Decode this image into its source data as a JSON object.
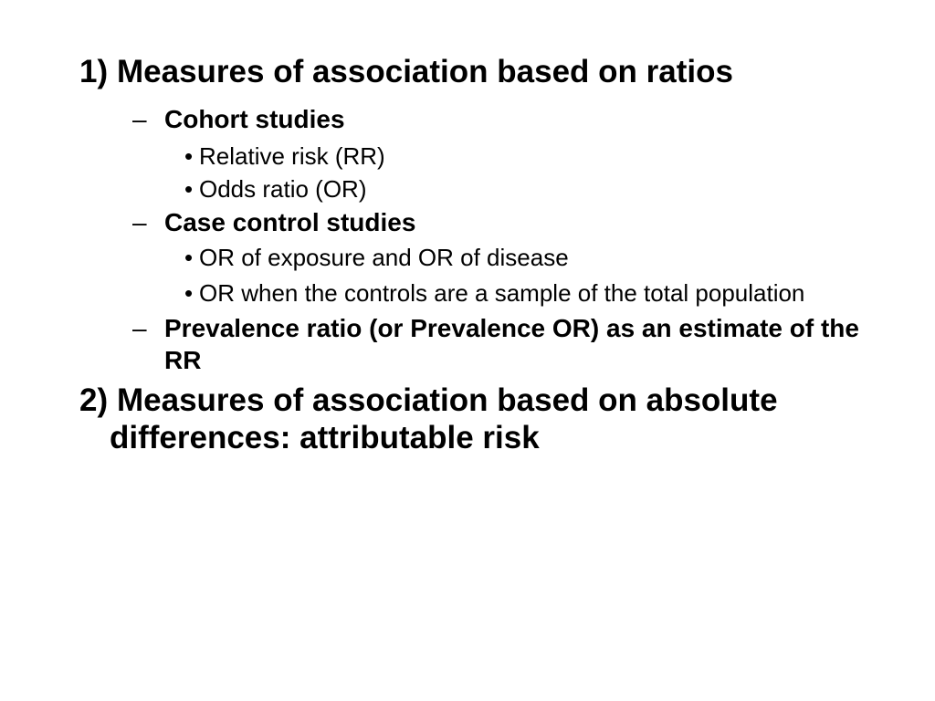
{
  "slide": {
    "background_color": "#ffffff",
    "text_color": "#000000",
    "outline": [
      {
        "level": 1,
        "marker": "1)",
        "text": "Measures of association based on ratios"
      },
      {
        "level": 2,
        "marker": "–",
        "text": "Cohort studies"
      },
      {
        "level": 3,
        "marker": "•",
        "text": "Relative risk (RR)"
      },
      {
        "level": 3,
        "marker": "•",
        "text": "Odds ratio (OR)"
      },
      {
        "level": 2,
        "marker": "–",
        "text": "Case control studies"
      },
      {
        "level": 3,
        "marker": "•",
        "text": "OR of exposure and OR of disease"
      },
      {
        "level": 3,
        "marker": "•",
        "text": "OR when the controls are a sample of the total population"
      },
      {
        "level": 2,
        "marker": "–",
        "text": "Prevalence ratio (or Prevalence OR) as an estimate of the RR"
      },
      {
        "level": 1,
        "marker": "2)",
        "text": "Measures of association based on absolute differences: attributable risk"
      }
    ]
  }
}
